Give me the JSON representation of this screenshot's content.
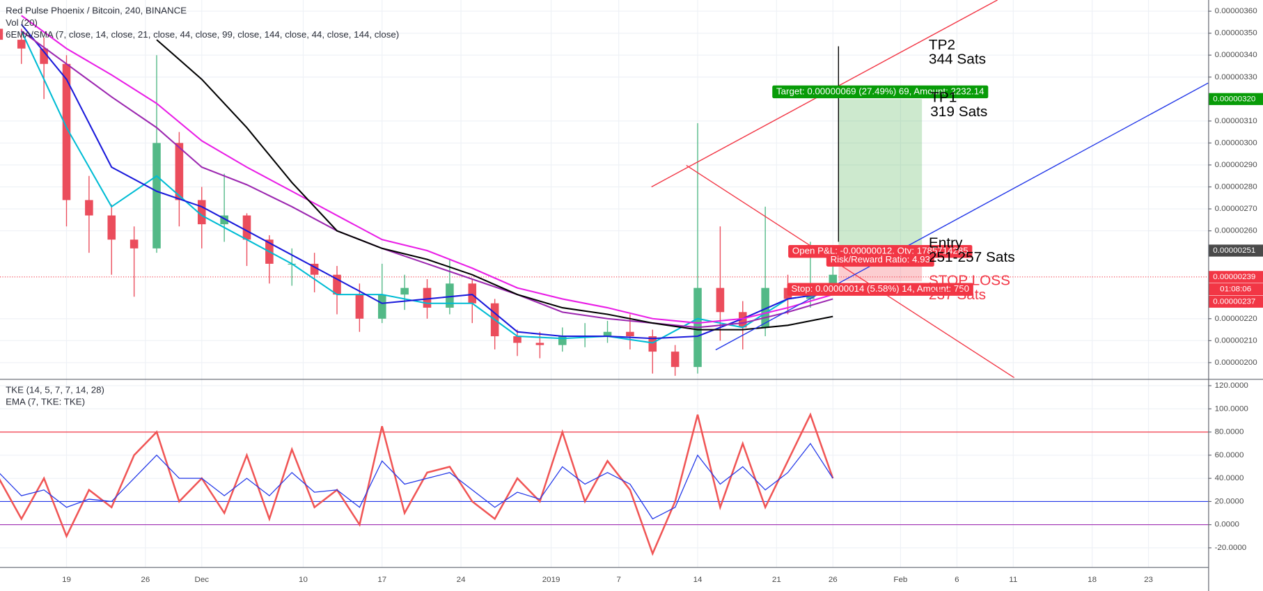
{
  "header": {
    "symbol": "Red Pulse Phoenix / Bitcoin, 240, BINANCE",
    "volume": "Vol (20)",
    "moving_averages": "6EMA/SMA (7, close, 14, close, 21, close, 44, close, 99, close, 144, close, 44, close, 144, close)"
  },
  "chart_data": [
    {
      "type": "candlestick",
      "xlim": [
        13.1,
        120.3
      ],
      "xticks": [
        {
          "value": 19,
          "label": "19"
        },
        {
          "value": 26,
          "label": "26"
        },
        {
          "value": 31,
          "label": "Dec"
        },
        {
          "value": 40,
          "label": "10"
        },
        {
          "value": 47,
          "label": "17"
        },
        {
          "value": 54,
          "label": "24"
        },
        {
          "value": 62,
          "label": "2019"
        },
        {
          "value": 68,
          "label": "7"
        },
        {
          "value": 75,
          "label": "14"
        },
        {
          "value": 82,
          "label": "21"
        },
        {
          "value": 87,
          "label": "26"
        },
        {
          "value": 93,
          "label": "Feb"
        },
        {
          "value": 98,
          "label": "6"
        },
        {
          "value": 103,
          "label": "11"
        },
        {
          "value": 110,
          "label": "18"
        },
        {
          "value": 115,
          "label": "23"
        }
      ],
      "ylim": [
        1.931e-06,
        3.651e-06
      ],
      "yticks": [
        {
          "value": 2e-06,
          "label": "0.00000200"
        },
        {
          "value": 2.1e-06,
          "label": "0.00000210"
        },
        {
          "value": 2.2e-06,
          "label": "0.00000220"
        },
        {
          "value": 2.6e-06,
          "label": "0.00000260"
        },
        {
          "value": 2.7e-06,
          "label": "0.00000270"
        },
        {
          "value": 2.8e-06,
          "label": "0.00000280"
        },
        {
          "value": 2.9e-06,
          "label": "0.00000290"
        },
        {
          "value": 3e-06,
          "label": "0.00000300"
        },
        {
          "value": 3.1e-06,
          "label": "0.00000310"
        },
        {
          "value": 3.3e-06,
          "label": "0.00000330"
        },
        {
          "value": 3.4e-06,
          "label": "0.00000340"
        },
        {
          "value": 3.5e-06,
          "label": "0.00000350"
        },
        {
          "value": 3.6e-06,
          "label": "0.00000360"
        }
      ],
      "grid": true,
      "up_color": "#53b987",
      "down_color": "#eb4d5c",
      "candles": {
        "x": [
          13,
          15,
          17,
          19,
          21,
          23,
          25,
          27,
          29,
          31,
          33,
          35,
          37,
          39,
          41,
          43,
          45,
          47,
          49,
          51,
          53,
          55,
          57,
          59,
          61,
          63,
          65,
          67,
          69,
          71,
          73,
          75,
          77,
          79,
          81,
          83,
          85,
          87
        ],
        "open": [
          3.52e-06,
          3.47e-06,
          3.43e-06,
          3.36e-06,
          2.74e-06,
          2.67e-06,
          2.56e-06,
          2.52e-06,
          3e-06,
          2.74e-06,
          2.63e-06,
          2.67e-06,
          2.56e-06,
          2.45e-06,
          2.45e-06,
          2.4e-06,
          2.31e-06,
          2.2e-06,
          2.31e-06,
          2.34e-06,
          2.25e-06,
          2.36e-06,
          2.27e-06,
          2.12e-06,
          2.09e-06,
          2.08e-06,
          2.12e-06,
          2.12e-06,
          2.14e-06,
          2.12e-06,
          2.05e-06,
          1.98e-06,
          2.34e-06,
          2.23e-06,
          2.16e-06,
          2.34e-06,
          2.29e-06,
          2.36e-06
        ],
        "high": [
          3.58e-06,
          3.52e-06,
          3.48e-06,
          3.4e-06,
          2.85e-06,
          2.72e-06,
          2.62e-06,
          3.4e-06,
          3.05e-06,
          2.8e-06,
          2.86e-06,
          2.68e-06,
          2.58e-06,
          2.52e-06,
          2.5e-06,
          2.44e-06,
          2.36e-06,
          2.45e-06,
          2.4e-06,
          2.38e-06,
          2.47e-06,
          2.38e-06,
          2.29e-06,
          2.15e-06,
          2.14e-06,
          2.16e-06,
          2.18e-06,
          2.19e-06,
          2.22e-06,
          2.15e-06,
          2.08e-06,
          3.09e-06,
          2.62e-06,
          2.28e-06,
          2.71e-06,
          2.4e-06,
          2.55e-06,
          2.46e-06
        ],
        "low": [
          3.4e-06,
          3.36e-06,
          3.2e-06,
          2.62e-06,
          2.5e-06,
          2.4e-06,
          2.3e-06,
          2.5e-06,
          2.62e-06,
          2.52e-06,
          2.55e-06,
          2.44e-06,
          2.36e-06,
          2.35e-06,
          2.32e-06,
          2.22e-06,
          2.14e-06,
          2.18e-06,
          2.24e-06,
          2.2e-06,
          2.22e-06,
          2.18e-06,
          2.06e-06,
          2.03e-06,
          2.02e-06,
          2.05e-06,
          2.07e-06,
          2.09e-06,
          2.06e-06,
          1.95e-06,
          1.94e-06,
          1.95e-06,
          2.1e-06,
          2.06e-06,
          2.12e-06,
          2.22e-06,
          2.25e-06,
          2.32e-06
        ],
        "close": [
          3.47e-06,
          3.43e-06,
          3.36e-06,
          2.74e-06,
          2.67e-06,
          2.56e-06,
          2.52e-06,
          3e-06,
          2.74e-06,
          2.63e-06,
          2.67e-06,
          2.56e-06,
          2.45e-06,
          2.45e-06,
          2.4e-06,
          2.31e-06,
          2.2e-06,
          2.31e-06,
          2.34e-06,
          2.25e-06,
          2.36e-06,
          2.27e-06,
          2.12e-06,
          2.09e-06,
          2.08e-06,
          2.12e-06,
          2.12e-06,
          2.14e-06,
          2.12e-06,
          2.05e-06,
          1.98e-06,
          2.34e-06,
          2.23e-06,
          2.16e-06,
          2.34e-06,
          2.29e-06,
          2.36e-06,
          2.4e-06
        ]
      },
      "moving_averages": {
        "x": [
          15,
          19,
          23,
          27,
          31,
          35,
          39,
          43,
          47,
          51,
          55,
          59,
          63,
          67,
          71,
          75,
          79,
          83,
          87
        ],
        "series": [
          {
            "color": "#00bcd4",
            "values": [
              3.51e-06,
              3.07e-06,
              2.71e-06,
              2.85e-06,
              2.67e-06,
              2.56e-06,
              2.45e-06,
              2.31e-06,
              2.31e-06,
              2.27e-06,
              2.27e-06,
              2.12e-06,
              2.11e-06,
              2.12e-06,
              2.09e-06,
              2.2e-06,
              2.16e-06,
              2.29e-06,
              2.32e-06
            ]
          },
          {
            "color": "#1a1adb",
            "values": [
              3.54e-06,
              3.29e-06,
              2.89e-06,
              2.78e-06,
              2.71e-06,
              2.6e-06,
              2.49e-06,
              2.38e-06,
              2.27e-06,
              2.29e-06,
              2.31e-06,
              2.14e-06,
              2.12e-06,
              2.12e-06,
              2.11e-06,
              2.12e-06,
              2.2e-06,
              2.29e-06,
              2.32e-06
            ]
          },
          {
            "color": "#9c27b0",
            "values": [
              3.51e-06,
              3.36e-06,
              3.21e-06,
              3.07e-06,
              2.89e-06,
              2.81e-06,
              2.71e-06,
              2.6e-06,
              2.52e-06,
              2.45e-06,
              2.38e-06,
              2.31e-06,
              2.23e-06,
              2.2e-06,
              2.18e-06,
              2.16e-06,
              2.18e-06,
              2.23e-06,
              2.29e-06
            ]
          },
          {
            "color": "#e91ee6",
            "values": [
              3.58e-06,
              3.43e-06,
              3.31e-06,
              3.18e-06,
              3.01e-06,
              2.89e-06,
              2.78e-06,
              2.67e-06,
              2.56e-06,
              2.51e-06,
              2.43e-06,
              2.34e-06,
              2.29e-06,
              2.25e-06,
              2.2e-06,
              2.18e-06,
              2.2e-06,
              2.25e-06,
              2.31e-06
            ]
          },
          {
            "color": "#000000",
            "values": [
              null,
              null,
              null,
              3.47e-06,
              3.29e-06,
              3.07e-06,
              2.82e-06,
              2.6e-06,
              2.52e-06,
              2.47e-06,
              2.4e-06,
              2.31e-06,
              2.25e-06,
              2.22e-06,
              2.18e-06,
              2.15e-06,
              2.15e-06,
              2.17e-06,
              2.21e-06
            ]
          }
        ]
      },
      "drawings": [
        {
          "color": "#f23645",
          "x": [
            70.9,
            101.6
          ],
          "y": [
            2.8e-06,
            3.651e-06
          ]
        },
        {
          "color": "#f23645",
          "x": [
            74,
            103.1
          ],
          "y": [
            2.898e-06,
            1.931e-06
          ]
        },
        {
          "color": "#2136e8",
          "x": [
            76.6,
            120.3
          ],
          "y": [
            2.058e-06,
            3.273e-06
          ]
        },
        {
          "color": "#000000",
          "x": [
            87.5,
            87.5
          ],
          "y": [
            3.44e-06,
            2.55e-06
          ]
        }
      ],
      "position": {
        "x_start": 87.5,
        "x_end": 94.9,
        "target": 3.2e-06,
        "entry": 2.51e-06,
        "stop": 2.37e-06,
        "target_label": "Target: 0.00000069 (27.49%) 69, Amount: 2232.14",
        "pnl_label": "Open P&L: -0.00000012, Qty: 1785714285",
        "rr_label": "Risk/Reward Ratio: 4.93",
        "stop_label": "Stop: 0.00000014 (5.58%) 14, Amount: 750"
      },
      "price_labels": [
        {
          "value": 3.2e-06,
          "label": "0.00000320",
          "color": "#089c08"
        },
        {
          "value": 2.51e-06,
          "label": "0.00000251",
          "color": "#4a4a4a"
        },
        {
          "value": 2.39e-06,
          "label": "0.00000239",
          "color": "#f23645",
          "line": "dotted"
        },
        {
          "value": 2.37e-06,
          "label": "0.00000237",
          "color": "#f23645"
        }
      ],
      "countdown": "01:08:06",
      "annotations": [
        {
          "text": "TP2",
          "color": "#000000"
        },
        {
          "text": "344 Sats",
          "color": "#000000"
        },
        {
          "text": "TP1",
          "color": "#000000"
        },
        {
          "text": "319 Sats",
          "color": "#000000"
        },
        {
          "text": "Entry",
          "color": "#000000"
        },
        {
          "text": "251-257 Sats",
          "color": "#000000"
        },
        {
          "text": "STOP LOSS",
          "color": "#f23645"
        },
        {
          "text": "237 Sats",
          "color": "#f23645"
        }
      ]
    },
    {
      "type": "line",
      "title": "TKE (14, 5, 7, 7, 14, 28)",
      "subtitle": "EMA (7, TKE: TKE)",
      "xlim": [
        13.1,
        120.3
      ],
      "ylim": [
        -36.6,
        124.1
      ],
      "yticks": [
        {
          "value": -20,
          "label": "-20.0000"
        },
        {
          "value": 0,
          "label": "0.0000"
        },
        {
          "value": 20,
          "label": "20.0000"
        },
        {
          "value": 40,
          "label": "40.0000"
        },
        {
          "value": 60,
          "label": "60.0000"
        },
        {
          "value": 80,
          "label": "80.0000"
        },
        {
          "value": 100,
          "label": "100.0000"
        },
        {
          "value": 120,
          "label": "120.0000"
        }
      ],
      "grid": true,
      "hlines": [
        {
          "value": 80,
          "color": "#f23645"
        },
        {
          "value": 20,
          "color": "#2136e8"
        },
        {
          "value": 0,
          "color": "#9c27b0"
        }
      ],
      "x": [
        13,
        15,
        17,
        19,
        21,
        23,
        25,
        27,
        29,
        31,
        33,
        35,
        37,
        39,
        41,
        43,
        45,
        47,
        49,
        51,
        53,
        55,
        57,
        59,
        61,
        63,
        65,
        67,
        69,
        71,
        73,
        75,
        77,
        79,
        81,
        83,
        85,
        87
      ],
      "series": [
        {
          "color": "#f05555",
          "values": [
            40,
            5,
            40,
            -10,
            30,
            15,
            60,
            80,
            20,
            40,
            10,
            60,
            5,
            65,
            15,
            30,
            0,
            85,
            10,
            45,
            50,
            20,
            5,
            40,
            20,
            80,
            20,
            55,
            30,
            -25,
            20,
            95,
            15,
            70,
            15,
            55,
            95,
            40
          ]
        },
        {
          "color": "#2136e8",
          "values": [
            45,
            25,
            30,
            15,
            22,
            20,
            40,
            60,
            40,
            40,
            25,
            40,
            25,
            45,
            28,
            30,
            15,
            55,
            35,
            40,
            45,
            30,
            15,
            28,
            22,
            50,
            35,
            45,
            35,
            5,
            15,
            60,
            35,
            50,
            30,
            45,
            70,
            40
          ]
        }
      ]
    }
  ]
}
